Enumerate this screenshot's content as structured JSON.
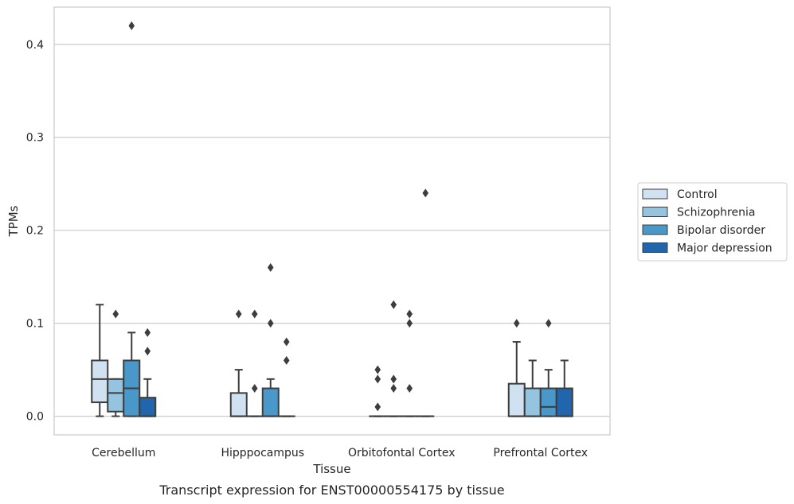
{
  "chart_data": {
    "type": "boxplot",
    "title": "Transcript expression for ENST00000554175 by tissue",
    "xlabel": "Tissue",
    "ylabel": "TPMs",
    "ylim": [
      -0.02,
      0.44
    ],
    "yticks": [
      "0.0",
      "0.1",
      "0.2",
      "0.3",
      "0.4"
    ],
    "grid": "horizontal",
    "legend_position": "right",
    "categories": [
      "Cerebellum",
      "Hipppocampus",
      "Orbitofontal Cortex",
      "Prefrontal Cortex"
    ],
    "series": [
      {
        "name": "Control",
        "color": "#d0e1f2",
        "boxes": [
          {
            "q1": 0.015,
            "median": 0.04,
            "q3": 0.06,
            "whislo": 0.0,
            "whishi": 0.12,
            "fliers": []
          },
          {
            "q1": 0.0,
            "median": 0.0,
            "q3": 0.025,
            "whislo": 0.0,
            "whishi": 0.05,
            "fliers": [
              0.11
            ]
          },
          {
            "q1": 0.0,
            "median": 0.0,
            "q3": 0.0,
            "whislo": 0.0,
            "whishi": 0.0,
            "fliers": [
              0.01,
              0.04,
              0.05
            ]
          },
          {
            "q1": 0.0,
            "median": 0.0,
            "q3": 0.035,
            "whislo": 0.0,
            "whishi": 0.08,
            "fliers": [
              0.1
            ]
          }
        ]
      },
      {
        "name": "Schizophrenia",
        "color": "#94c4df",
        "boxes": [
          {
            "q1": 0.005,
            "median": 0.025,
            "q3": 0.04,
            "whislo": 0.0,
            "whishi": 0.04,
            "fliers": [
              0.11
            ]
          },
          {
            "q1": 0.0,
            "median": 0.0,
            "q3": 0.0,
            "whislo": 0.0,
            "whishi": 0.0,
            "fliers": [
              0.03,
              0.11
            ]
          },
          {
            "q1": 0.0,
            "median": 0.0,
            "q3": 0.0,
            "whislo": 0.0,
            "whishi": 0.0,
            "fliers": [
              0.03,
              0.04,
              0.12
            ]
          },
          {
            "q1": 0.0,
            "median": 0.0,
            "q3": 0.03,
            "whislo": 0.0,
            "whishi": 0.06,
            "fliers": []
          }
        ]
      },
      {
        "name": "Bipolar disorder",
        "color": "#4a98c9",
        "boxes": [
          {
            "q1": 0.0,
            "median": 0.03,
            "q3": 0.06,
            "whislo": 0.0,
            "whishi": 0.09,
            "fliers": [
              0.42
            ]
          },
          {
            "q1": 0.0,
            "median": 0.0,
            "q3": 0.03,
            "whislo": 0.0,
            "whishi": 0.04,
            "fliers": [
              0.1,
              0.16
            ]
          },
          {
            "q1": 0.0,
            "median": 0.0,
            "q3": 0.0,
            "whislo": 0.0,
            "whishi": 0.0,
            "fliers": [
              0.03,
              0.1,
              0.11
            ]
          },
          {
            "q1": 0.0,
            "median": 0.01,
            "q3": 0.03,
            "whislo": 0.0,
            "whishi": 0.05,
            "fliers": [
              0.1
            ]
          }
        ]
      },
      {
        "name": "Major depression",
        "color": "#2166ac",
        "boxes": [
          {
            "q1": 0.0,
            "median": 0.0,
            "q3": 0.02,
            "whislo": 0.0,
            "whishi": 0.04,
            "fliers": [
              0.07,
              0.09
            ]
          },
          {
            "q1": 0.0,
            "median": 0.0,
            "q3": 0.0,
            "whislo": 0.0,
            "whishi": 0.0,
            "fliers": [
              0.06,
              0.08
            ]
          },
          {
            "q1": 0.0,
            "median": 0.0,
            "q3": 0.0,
            "whislo": 0.0,
            "whishi": 0.0,
            "fliers": [
              0.24
            ]
          },
          {
            "q1": 0.0,
            "median": 0.0,
            "q3": 0.03,
            "whislo": 0.0,
            "whishi": 0.06,
            "fliers": []
          }
        ]
      }
    ]
  }
}
